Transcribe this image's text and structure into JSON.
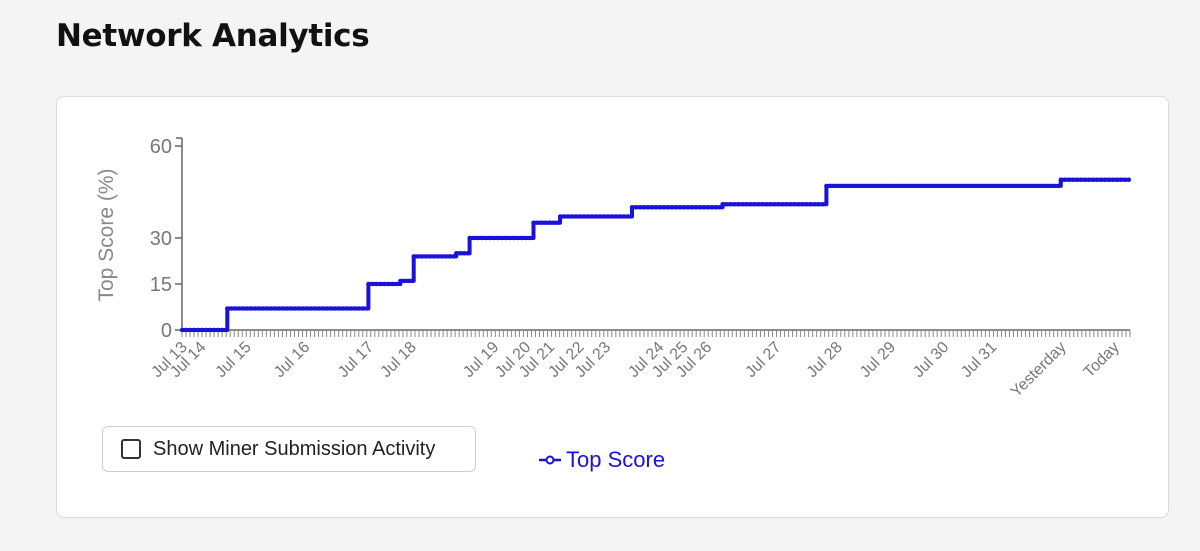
{
  "page": {
    "title": "Network Analytics"
  },
  "controls": {
    "show_activity_label": "Show Miner Submission Activity"
  },
  "legend": {
    "label": "Top Score"
  },
  "colors": {
    "series": "#1a12d6",
    "axis": "#666666",
    "tick_text": "#777777"
  },
  "chart_data": {
    "type": "line",
    "title": "",
    "xlabel": "",
    "ylabel": "Top Score (%)",
    "ylim": [
      0,
      60
    ],
    "yticks": [
      0,
      15,
      30,
      60
    ],
    "x_tick_labels": [
      {
        "label": "Jul 13",
        "day": 0.0
      },
      {
        "label": "Jul 14",
        "day": 0.35
      },
      {
        "label": "Jul 15",
        "day": 1.2
      },
      {
        "label": "Jul 16",
        "day": 2.3
      },
      {
        "label": "Jul 17",
        "day": 3.5
      },
      {
        "label": "Jul 18",
        "day": 4.3
      },
      {
        "label": "Jul 19",
        "day": 5.85
      },
      {
        "label": "Jul 20",
        "day": 6.45
      },
      {
        "label": "Jul 21",
        "day": 6.9
      },
      {
        "label": "Jul 22",
        "day": 7.45
      },
      {
        "label": "Jul 23",
        "day": 7.95
      },
      {
        "label": "Jul 24",
        "day": 8.95
      },
      {
        "label": "Jul 25",
        "day": 9.4
      },
      {
        "label": "Jul 26",
        "day": 9.85
      },
      {
        "label": "Jul 27",
        "day": 11.15
      },
      {
        "label": "Jul 28",
        "day": 12.3
      },
      {
        "label": "Jul 29",
        "day": 13.3
      },
      {
        "label": "Jul 30",
        "day": 14.3
      },
      {
        "label": "Jul 31",
        "day": 15.2
      },
      {
        "label": "Yesterday",
        "day": 16.5
      },
      {
        "label": "Today",
        "day": 17.5
      }
    ],
    "x_range_days": [
      0,
      17.8
    ],
    "series": [
      {
        "name": "Top Score",
        "points": [
          [
            0.0,
            0
          ],
          [
            0.85,
            0
          ],
          [
            0.85,
            7
          ],
          [
            3.5,
            7
          ],
          [
            3.5,
            15
          ],
          [
            4.1,
            15
          ],
          [
            4.1,
            16
          ],
          [
            4.35,
            16
          ],
          [
            4.35,
            24
          ],
          [
            5.15,
            24
          ],
          [
            5.15,
            25
          ],
          [
            5.4,
            25
          ],
          [
            5.4,
            30
          ],
          [
            6.6,
            30
          ],
          [
            6.6,
            35
          ],
          [
            7.1,
            35
          ],
          [
            7.1,
            37
          ],
          [
            8.45,
            37
          ],
          [
            8.45,
            40
          ],
          [
            10.15,
            40
          ],
          [
            10.15,
            41
          ],
          [
            12.1,
            41
          ],
          [
            12.1,
            47
          ],
          [
            16.5,
            47
          ],
          [
            16.5,
            49
          ],
          [
            17.8,
            49
          ]
        ]
      }
    ]
  }
}
